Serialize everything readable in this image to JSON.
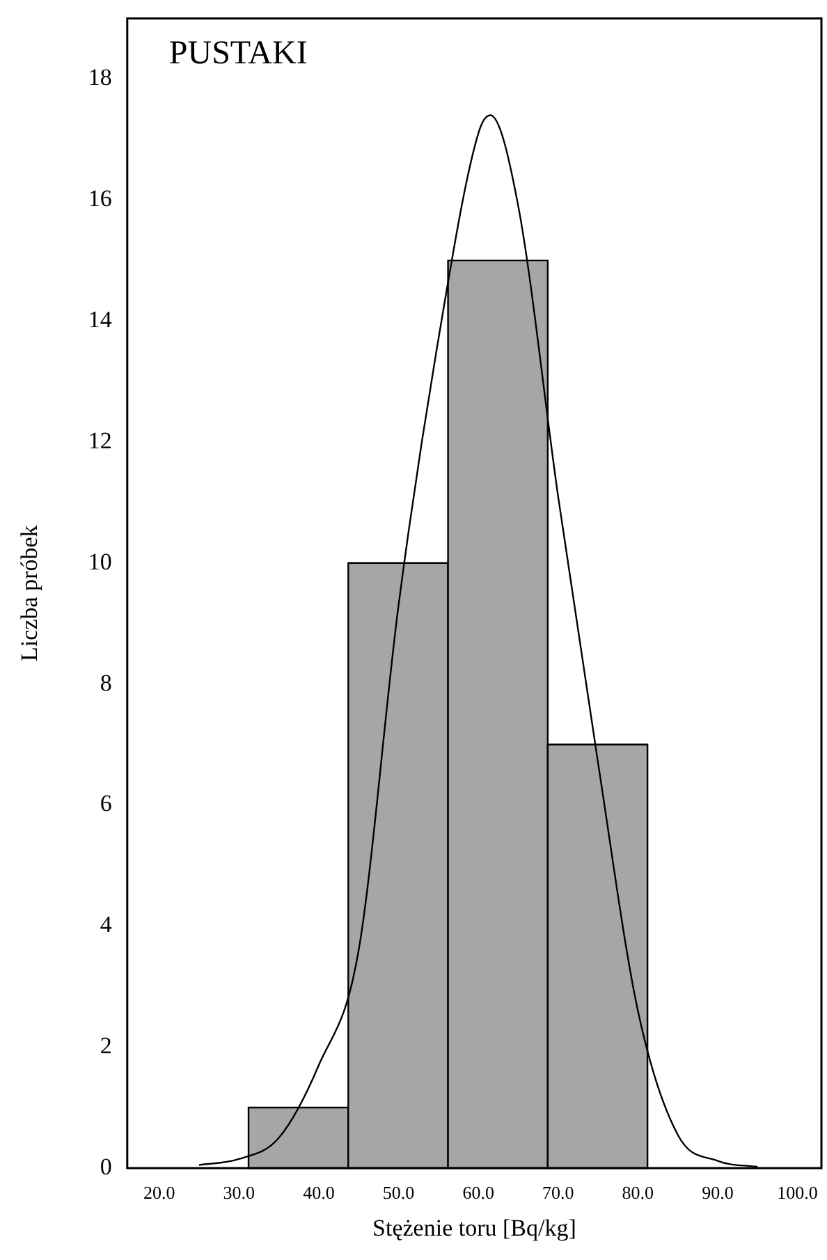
{
  "chart_data": {
    "type": "histogram",
    "title": "PUSTAKI",
    "xlabel": "Stężenie toru [Bq/kg]",
    "ylabel": "Liczba próbek",
    "series": [
      {
        "bins": [
          31.2,
          43.7,
          56.2,
          68.7,
          81.2
        ],
        "values": [
          1,
          10,
          15,
          7
        ],
        "color": "#a6a6a6"
      },
      {
        "type": "line",
        "x": [
          25,
          30,
          35,
          40,
          45,
          50,
          55,
          60,
          61.5,
          65,
          70,
          75,
          80,
          85,
          90,
          95
        ],
        "values": [
          0.05,
          0.15,
          0.5,
          1.7,
          3.6,
          9.3,
          13.7,
          17.1,
          17.4,
          15.9,
          11.1,
          6.7,
          2.6,
          0.55,
          0.12,
          0.02
        ],
        "color": "#000000"
      }
    ],
    "xlim": [
      16,
      103
    ],
    "xticks": [
      {
        "value": 20,
        "label": "20.0"
      },
      {
        "value": 30,
        "label": "30.0"
      },
      {
        "value": 40,
        "label": "40.0"
      },
      {
        "value": 50,
        "label": "50.0"
      },
      {
        "value": 60,
        "label": "60.0"
      },
      {
        "value": 70,
        "label": "70.0"
      },
      {
        "value": 80,
        "label": "80.0"
      },
      {
        "value": 90,
        "label": "90.0"
      },
      {
        "value": 100,
        "label": "100.0"
      }
    ],
    "ylim": [
      0,
      19
    ],
    "yticks": [
      0,
      2,
      4,
      6,
      8,
      10,
      12,
      14,
      16,
      18
    ],
    "grid": false,
    "legend": false,
    "marker": "none",
    "line_style": "solid"
  }
}
